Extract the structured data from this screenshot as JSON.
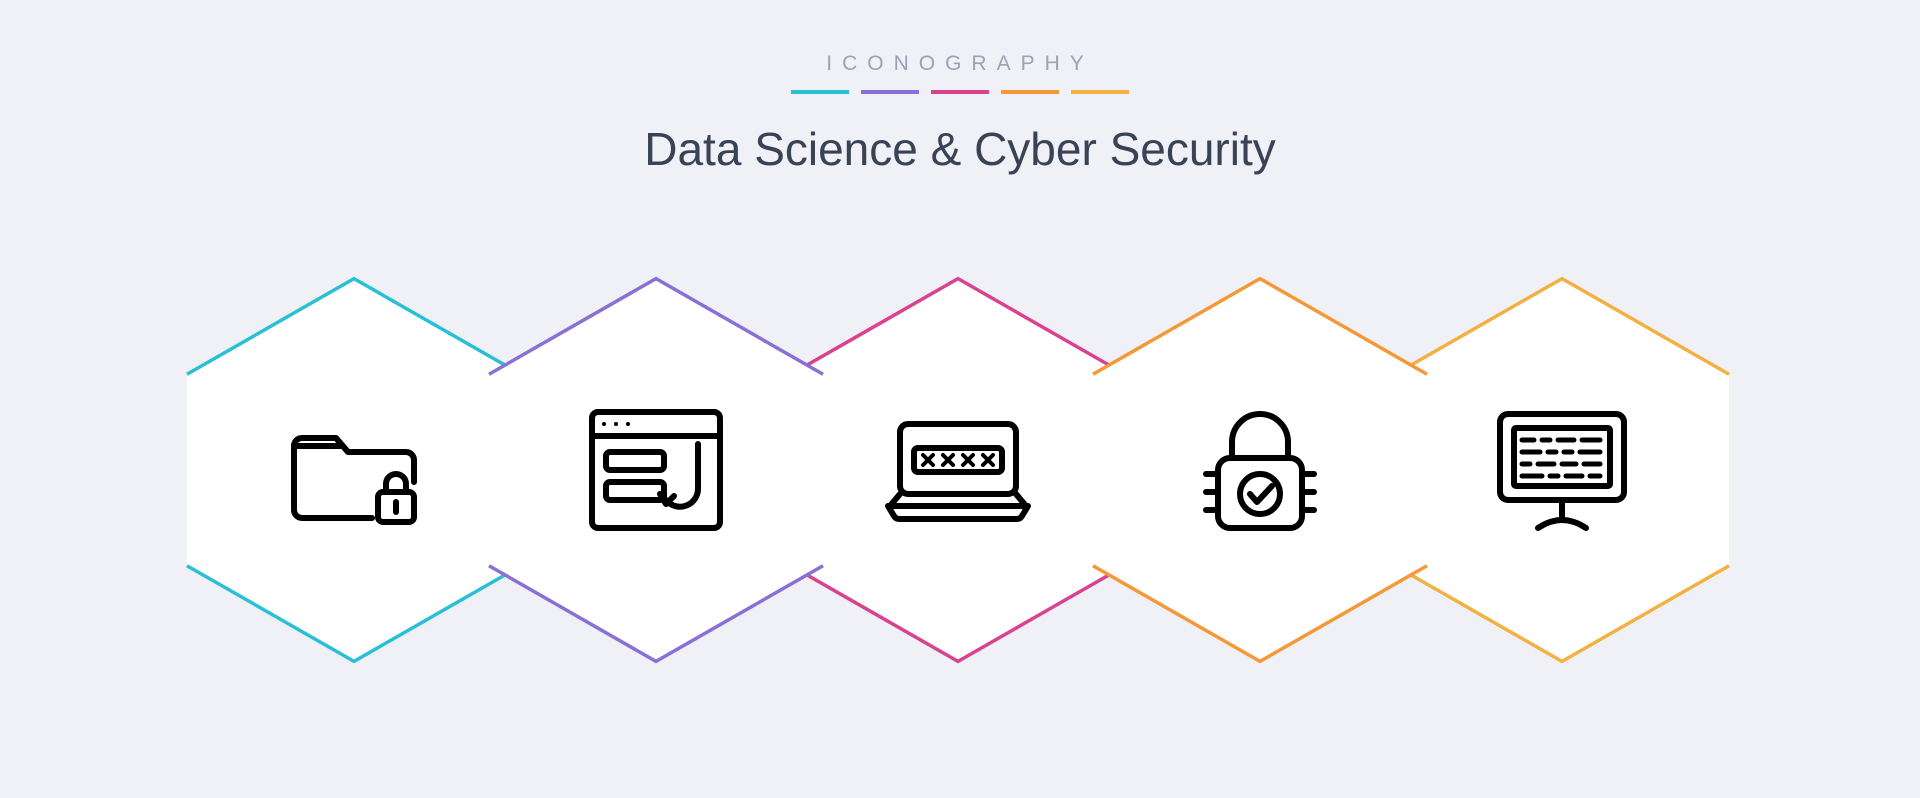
{
  "header": {
    "brand": "ICONOGRAPHY",
    "title": "Data Science & Cyber Security"
  },
  "palette": {
    "cyan": "#29c0d6",
    "purple": "#8a6fd4",
    "magenta": "#d9428f",
    "orange": "#f59838",
    "amber": "#f3b143",
    "bg": "#eff1f6",
    "white": "#ffffff",
    "icon": "#000000",
    "text": "#3a4256",
    "muted": "#9aa2b5"
  },
  "hex": {
    "spacing": 302,
    "items": [
      {
        "color": "cyan",
        "icon": "folder-lock"
      },
      {
        "color": "purple",
        "icon": "phishing-form"
      },
      {
        "color": "magenta",
        "icon": "laptop-password"
      },
      {
        "color": "orange",
        "icon": "padlock-check"
      },
      {
        "color": "amber",
        "icon": "monitor-code"
      }
    ]
  }
}
